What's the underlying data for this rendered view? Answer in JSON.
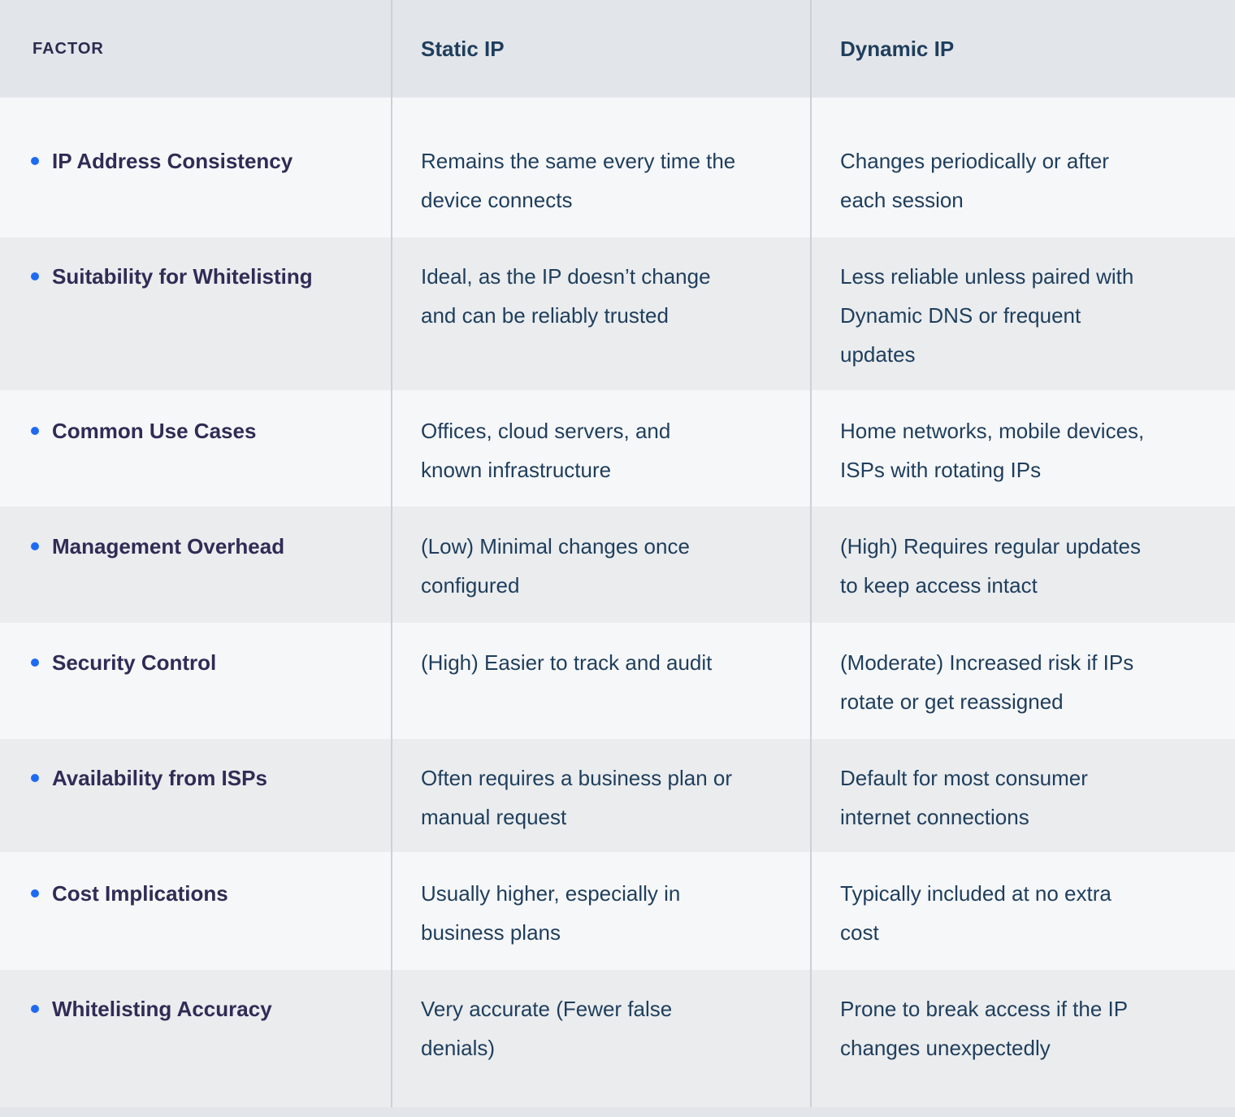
{
  "table": {
    "columns": [
      {
        "label": "FACTOR"
      },
      {
        "label": "Static IP"
      },
      {
        "label": "Dynamic IP"
      }
    ],
    "rows": [
      {
        "factor": "IP Address Consistency",
        "static_ip": "Remains the same every time the device connects",
        "dynamic_ip": "Changes periodically or after each session"
      },
      {
        "factor": "Suitability for Whitelisting",
        "static_ip": "Ideal, as the IP doesn’t change and can be reliably trusted",
        "dynamic_ip": "Less reliable unless paired with Dynamic DNS or frequent updates"
      },
      {
        "factor": "Common Use Cases",
        "static_ip": "Offices, cloud servers, and known infrastructure",
        "dynamic_ip": "Home networks, mobile devices, ISPs with rotating IPs"
      },
      {
        "factor": "Management Overhead",
        "static_ip": "(Low) Minimal changes once configured",
        "dynamic_ip": "(High) Requires regular updates to keep access intact"
      },
      {
        "factor": "Security Control",
        "static_ip": "(High) Easier to track and audit",
        "dynamic_ip": "(Moderate) Increased risk if IPs rotate or get reassigned"
      },
      {
        "factor": "Availability from ISPs",
        "static_ip": "Often requires a business plan or manual request",
        "dynamic_ip": "Default for most consumer internet connections"
      },
      {
        "factor": "Cost Implications",
        "static_ip": "Usually higher, especially in business plans",
        "dynamic_ip": "Typically included at no extra cost"
      },
      {
        "factor": "Whitelisting Accuracy",
        "static_ip": "Very accurate (Fewer false denials)",
        "dynamic_ip": "Prone to break access if the IP changes unexpectedly"
      }
    ]
  },
  "colors": {
    "header_background": "#e2e5e9",
    "row_light_background": "#f6f7f9",
    "row_dark_background": "#eaecee",
    "divider": "#ccd1d6",
    "header_text": "#14324e",
    "factor_header_text": "#2c2a4e",
    "factor_label_text": "#2f2c55",
    "cell_text": "#1f3e5c",
    "bullet_blue": "#1e6bf2"
  }
}
